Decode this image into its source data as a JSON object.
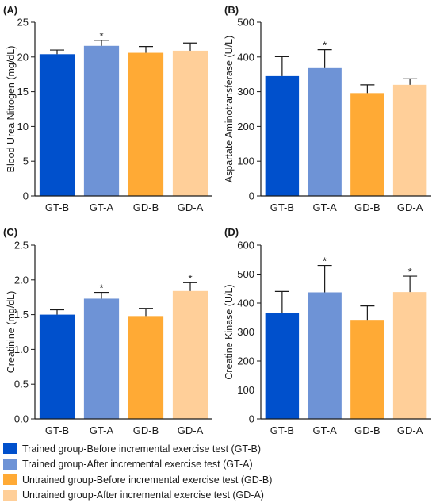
{
  "colors": {
    "GT-B": "#0050cc",
    "GT-A": "#6e93d6",
    "GD-B": "#ffaa35",
    "GD-A": "#ffcf99",
    "axis": "#1a1a1a"
  },
  "legend": [
    {
      "key": "GT-B",
      "label": "Trained group-Before incremental exercise test (GT-B)"
    },
    {
      "key": "GT-A",
      "label": "Trained group-After incremental exercise test (GT-A)"
    },
    {
      "key": "GD-B",
      "label": "Untrained group-Before incremental exercise test (GD-B)"
    },
    {
      "key": "GD-A",
      "label": "Untrained group-After incremental exercise test (GD-A)"
    }
  ],
  "chart_data": [
    {
      "type": "bar",
      "panel": "(A)",
      "ylabel": "Blood Urea Nitrogen (mg/dL)",
      "categories": [
        "GT-B",
        "GT-A",
        "GD-B",
        "GD-A"
      ],
      "values": [
        20.4,
        21.6,
        20.6,
        20.9
      ],
      "errors": [
        0.6,
        0.8,
        0.9,
        1.1
      ],
      "significant": [
        false,
        true,
        false,
        false
      ],
      "ylim": [
        0,
        25
      ],
      "yticks": [
        "0",
        "5",
        "10",
        "15",
        "20",
        "25"
      ]
    },
    {
      "type": "bar",
      "panel": "(B)",
      "ylabel": "Aspartate Aminotransferase (U/L)",
      "categories": [
        "GT-B",
        "GT-A",
        "GD-B",
        "GD-A"
      ],
      "values": [
        345,
        368,
        296,
        320
      ],
      "errors": [
        56,
        53,
        24,
        17
      ],
      "significant": [
        false,
        true,
        false,
        false
      ],
      "ylim": [
        0,
        500
      ],
      "yticks": [
        "0",
        "100",
        "200",
        "300",
        "400",
        "500"
      ]
    },
    {
      "type": "bar",
      "panel": "(C)",
      "ylabel": "Creatinine (mg/dL)",
      "categories": [
        "GT-B",
        "GT-A",
        "GD-B",
        "GD-A"
      ],
      "values": [
        1.5,
        1.73,
        1.48,
        1.84
      ],
      "errors": [
        0.07,
        0.09,
        0.11,
        0.12
      ],
      "significant": [
        false,
        true,
        false,
        true
      ],
      "ylim": [
        0,
        2.5
      ],
      "yticks": [
        "0.0",
        "0.5",
        "1.0",
        "1.5",
        "2.0",
        "2.5"
      ]
    },
    {
      "type": "bar",
      "panel": "(D)",
      "ylabel": "Creatine Kinase (U/L)",
      "categories": [
        "GT-B",
        "GT-A",
        "GD-B",
        "GD-A"
      ],
      "values": [
        367,
        437,
        342,
        438
      ],
      "errors": [
        73,
        93,
        48,
        55
      ],
      "significant": [
        false,
        true,
        false,
        true
      ],
      "ylim": [
        0,
        600
      ],
      "yticks": [
        "0",
        "100",
        "200",
        "300",
        "400",
        "500",
        "600"
      ]
    }
  ]
}
